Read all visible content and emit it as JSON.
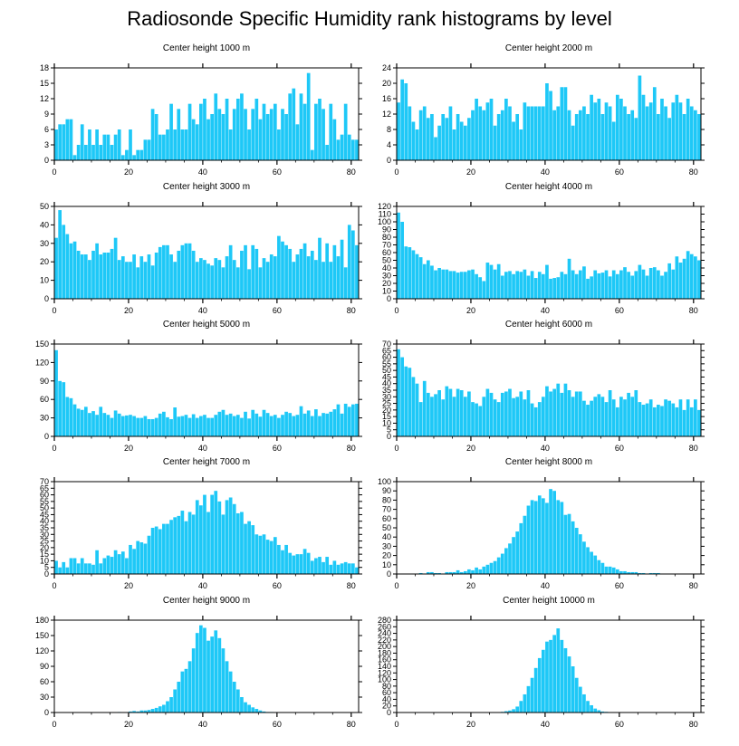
{
  "title": "Radiosonde Specific Humidity rank histograms by level",
  "bar_color": "#1ec8f7",
  "chart_data": [
    {
      "type": "bar",
      "title": "Center height 1000 m",
      "xlim": [
        0,
        82
      ],
      "ylim": [
        0,
        18
      ],
      "xticks": [
        0,
        20,
        40,
        60,
        80
      ],
      "yticks": [
        0,
        3,
        6,
        9,
        12,
        15,
        18
      ],
      "values": [
        6,
        7,
        7,
        8,
        8,
        1,
        3,
        7,
        3,
        6,
        3,
        6,
        3,
        5,
        5,
        3,
        5,
        6,
        1,
        2,
        6,
        1,
        2,
        2,
        4,
        4,
        10,
        9,
        5,
        5,
        6,
        11,
        6,
        10,
        6,
        6,
        11,
        8,
        7,
        11,
        12,
        8,
        9,
        13,
        10,
        9,
        12,
        6,
        10,
        12,
        13,
        10,
        6,
        10,
        12,
        8,
        11,
        9,
        10,
        11,
        6,
        10,
        9,
        13,
        14,
        7,
        13,
        11,
        17,
        2,
        11,
        12,
        10,
        3,
        11,
        8,
        4,
        5,
        11,
        5,
        4,
        4
      ]
    },
    {
      "type": "bar",
      "title": "Center height 2000 m",
      "xlim": [
        0,
        82
      ],
      "ylim": [
        0,
        24
      ],
      "xticks": [
        0,
        20,
        40,
        60,
        80
      ],
      "yticks": [
        0,
        4,
        8,
        12,
        16,
        20,
        24
      ],
      "values": [
        15,
        21,
        20,
        14,
        10,
        8,
        13,
        14,
        11,
        12,
        6,
        9,
        12,
        11,
        14,
        8,
        12,
        10,
        9,
        11,
        13,
        16,
        14,
        13,
        15,
        16,
        9,
        12,
        13,
        16,
        14,
        10,
        12,
        8,
        15,
        14,
        14,
        14,
        14,
        14,
        20,
        18,
        13,
        14,
        19,
        19,
        13,
        9,
        12,
        13,
        14,
        12,
        17,
        15,
        16,
        12,
        15,
        14,
        10,
        17,
        16,
        14,
        12,
        13,
        11,
        22,
        17,
        14,
        15,
        19,
        12,
        16,
        14,
        11,
        15,
        17,
        15,
        12,
        16,
        14,
        13,
        12
      ]
    },
    {
      "type": "bar",
      "title": "Center height 3000 m",
      "xlim": [
        0,
        82
      ],
      "ylim": [
        0,
        50
      ],
      "xticks": [
        0,
        20,
        40,
        60,
        80
      ],
      "yticks": [
        0,
        10,
        20,
        30,
        40,
        50
      ],
      "values": [
        33,
        48,
        40,
        35,
        30,
        31,
        26,
        24,
        24,
        21,
        26,
        30,
        24,
        25,
        25,
        27,
        33,
        21,
        23,
        20,
        20,
        24,
        17,
        23,
        20,
        24,
        18,
        25,
        28,
        29,
        29,
        24,
        20,
        26,
        29,
        30,
        30,
        26,
        20,
        22,
        21,
        19,
        18,
        22,
        21,
        17,
        23,
        29,
        21,
        17,
        26,
        29,
        16,
        29,
        27,
        17,
        22,
        20,
        24,
        23,
        34,
        31,
        29,
        27,
        20,
        24,
        27,
        30,
        23,
        26,
        21,
        33,
        20,
        30,
        20,
        29,
        23,
        32,
        17,
        40,
        37,
        29
      ]
    },
    {
      "type": "bar",
      "title": "Center height 4000 m",
      "xlim": [
        0,
        82
      ],
      "ylim": [
        0,
        120
      ],
      "xticks": [
        0,
        20,
        40,
        60,
        80
      ],
      "yticks": [
        0,
        10,
        20,
        30,
        40,
        50,
        60,
        70,
        80,
        90,
        100,
        110,
        120
      ],
      "values": [
        112,
        100,
        68,
        67,
        63,
        58,
        54,
        45,
        50,
        43,
        37,
        40,
        38,
        38,
        36,
        36,
        34,
        35,
        35,
        37,
        38,
        32,
        28,
        23,
        47,
        44,
        38,
        45,
        30,
        35,
        36,
        32,
        36,
        35,
        38,
        30,
        36,
        27,
        35,
        32,
        44,
        26,
        27,
        28,
        35,
        32,
        52,
        37,
        32,
        37,
        42,
        26,
        29,
        37,
        33,
        34,
        37,
        29,
        37,
        32,
        37,
        41,
        35,
        30,
        36,
        44,
        38,
        30,
        40,
        41,
        37,
        30,
        35,
        46,
        38,
        55,
        47,
        52,
        62,
        58,
        55,
        50
      ]
    },
    {
      "type": "bar",
      "title": "Center height 5000 m",
      "xlim": [
        0,
        82
      ],
      "ylim": [
        0,
        150
      ],
      "xticks": [
        0,
        20,
        40,
        60,
        80
      ],
      "yticks": [
        0,
        30,
        60,
        90,
        120,
        150
      ],
      "values": [
        140,
        90,
        88,
        64,
        62,
        52,
        45,
        43,
        48,
        38,
        41,
        35,
        48,
        38,
        35,
        30,
        42,
        37,
        33,
        34,
        35,
        33,
        30,
        30,
        33,
        28,
        28,
        30,
        37,
        40,
        31,
        28,
        47,
        32,
        33,
        35,
        30,
        36,
        30,
        33,
        35,
        30,
        30,
        35,
        40,
        43,
        35,
        37,
        33,
        35,
        30,
        40,
        29,
        43,
        37,
        32,
        43,
        38,
        33,
        35,
        30,
        35,
        40,
        38,
        33,
        35,
        49,
        37,
        42,
        33,
        44,
        33,
        38,
        37,
        40,
        44,
        52,
        37,
        53,
        48,
        52,
        53
      ]
    },
    {
      "type": "bar",
      "title": "Center height 6000 m",
      "xlim": [
        0,
        82
      ],
      "ylim": [
        0,
        70
      ],
      "xticks": [
        0,
        20,
        40,
        60,
        80
      ],
      "yticks": [
        0,
        5,
        10,
        15,
        20,
        25,
        30,
        35,
        40,
        45,
        50,
        55,
        60,
        65,
        70
      ],
      "values": [
        66,
        60,
        53,
        52,
        45,
        40,
        26,
        42,
        33,
        30,
        32,
        35,
        28,
        38,
        36,
        30,
        36,
        35,
        30,
        34,
        26,
        25,
        23,
        30,
        36,
        33,
        28,
        26,
        33,
        34,
        36,
        29,
        30,
        34,
        28,
        35,
        25,
        22,
        26,
        30,
        38,
        34,
        36,
        40,
        33,
        40,
        35,
        30,
        34,
        34,
        27,
        24,
        27,
        30,
        32,
        30,
        26,
        35,
        28,
        22,
        30,
        28,
        33,
        30,
        35,
        26,
        24,
        25,
        28,
        22,
        24,
        23,
        28,
        27,
        25,
        22,
        28,
        20,
        28,
        22,
        28,
        20
      ]
    },
    {
      "type": "bar",
      "title": "Center height 7000 m",
      "xlim": [
        0,
        82
      ],
      "ylim": [
        0,
        70
      ],
      "xticks": [
        0,
        20,
        40,
        60,
        80
      ],
      "yticks": [
        0,
        5,
        10,
        15,
        20,
        25,
        30,
        35,
        40,
        45,
        50,
        55,
        60,
        65,
        70
      ],
      "values": [
        10,
        5,
        9,
        5,
        12,
        12,
        8,
        12,
        8,
        8,
        7,
        18,
        8,
        12,
        14,
        13,
        18,
        15,
        17,
        12,
        22,
        19,
        25,
        24,
        23,
        29,
        35,
        36,
        34,
        38,
        38,
        41,
        43,
        44,
        48,
        40,
        47,
        45,
        56,
        52,
        60,
        47,
        60,
        63,
        55,
        45,
        56,
        58,
        53,
        46,
        47,
        38,
        40,
        37,
        30,
        29,
        30,
        26,
        25,
        28,
        22,
        18,
        22,
        16,
        14,
        15,
        15,
        19,
        16,
        10,
        12,
        13,
        9,
        13,
        7,
        10,
        7,
        8,
        9,
        8,
        8,
        5
      ]
    },
    {
      "type": "bar",
      "title": "Center height 8000 m",
      "xlim": [
        0,
        82
      ],
      "ylim": [
        0,
        100
      ],
      "xticks": [
        0,
        20,
        40,
        60,
        80
      ],
      "yticks": [
        0,
        10,
        20,
        30,
        40,
        50,
        60,
        70,
        80,
        90,
        100
      ],
      "values": [
        0,
        0,
        0,
        0,
        0,
        0,
        1,
        0,
        2,
        2,
        1,
        1,
        0,
        2,
        2,
        2,
        4,
        2,
        3,
        5,
        4,
        7,
        5,
        8,
        10,
        12,
        14,
        18,
        22,
        28,
        33,
        40,
        46,
        55,
        63,
        74,
        80,
        79,
        85,
        82,
        77,
        92,
        90,
        80,
        78,
        64,
        65,
        57,
        50,
        43,
        35,
        29,
        24,
        20,
        15,
        12,
        8,
        8,
        7,
        5,
        3,
        3,
        2,
        2,
        2,
        1,
        1,
        0,
        1,
        1,
        1,
        0,
        0,
        0,
        0,
        0,
        0,
        0,
        0,
        0,
        0,
        0
      ]
    },
    {
      "type": "bar",
      "title": "Center height 9000 m",
      "xlim": [
        0,
        82
      ],
      "ylim": [
        0,
        180
      ],
      "xticks": [
        0,
        20,
        40,
        60,
        80
      ],
      "yticks": [
        0,
        30,
        60,
        90,
        120,
        150,
        180
      ],
      "values": [
        0,
        0,
        0,
        0,
        0,
        0,
        0,
        0,
        0,
        0,
        0,
        0,
        0,
        0,
        0,
        0,
        0,
        1,
        0,
        0,
        2,
        3,
        2,
        4,
        4,
        5,
        7,
        9,
        12,
        15,
        22,
        30,
        45,
        60,
        80,
        85,
        100,
        125,
        155,
        170,
        165,
        140,
        148,
        160,
        145,
        125,
        100,
        80,
        60,
        45,
        30,
        20,
        15,
        10,
        7,
        4,
        2,
        1,
        1,
        0,
        0,
        0,
        0,
        0,
        0,
        0,
        0,
        0,
        0,
        0,
        0,
        0,
        0,
        0,
        0,
        0,
        0,
        0,
        0,
        0,
        0,
        0
      ]
    },
    {
      "type": "bar",
      "title": "Center height 10000 m",
      "xlim": [
        0,
        82
      ],
      "ylim": [
        0,
        280
      ],
      "xticks": [
        0,
        20,
        40,
        60,
        80
      ],
      "yticks": [
        0,
        20,
        40,
        60,
        80,
        100,
        120,
        140,
        160,
        180,
        200,
        220,
        240,
        260,
        280
      ],
      "values": [
        0,
        0,
        0,
        0,
        0,
        0,
        0,
        0,
        0,
        0,
        0,
        0,
        0,
        0,
        0,
        0,
        0,
        0,
        0,
        0,
        0,
        0,
        0,
        0,
        0,
        0,
        1,
        1,
        2,
        4,
        6,
        10,
        18,
        35,
        55,
        80,
        105,
        135,
        165,
        190,
        215,
        220,
        235,
        255,
        220,
        195,
        170,
        140,
        105,
        78,
        55,
        35,
        22,
        12,
        7,
        3,
        2,
        1,
        0,
        0,
        0,
        0,
        0,
        0,
        0,
        0,
        0,
        0,
        0,
        0,
        0,
        0,
        0,
        0,
        0,
        0,
        0,
        0,
        0,
        0,
        0,
        0
      ]
    }
  ]
}
